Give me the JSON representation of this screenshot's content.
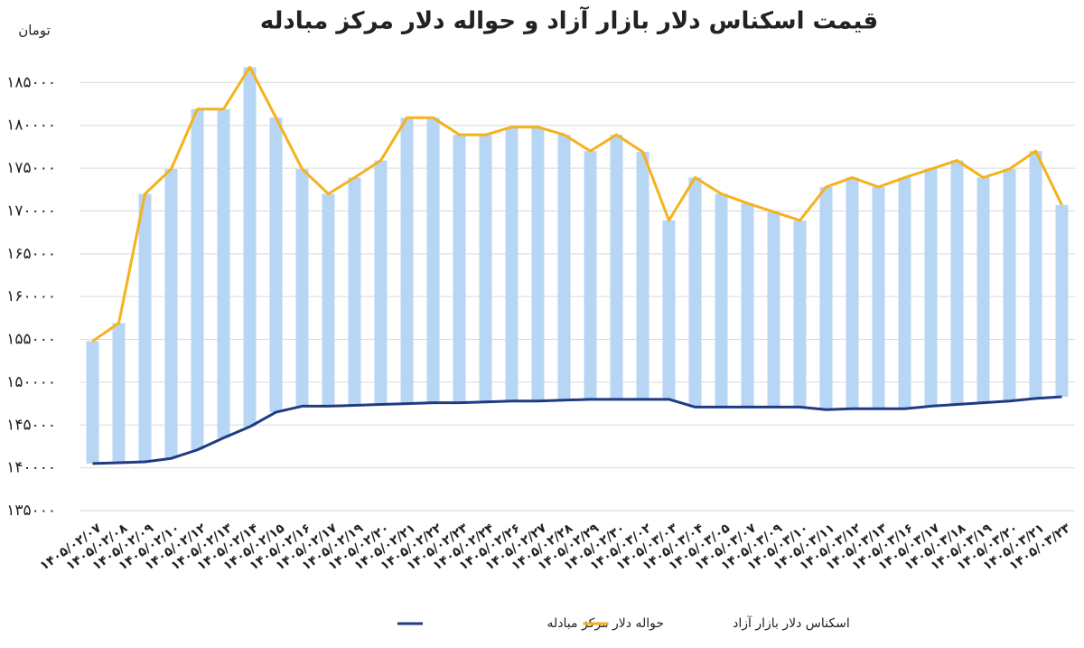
{
  "chart_data": {
    "type": "line",
    "title": "قیمت اسکناس دلار بازار آزاد و حواله دلار مرکز مبادله",
    "y_label": "تومان",
    "categories": [
      "۱۴۰۵/۰۲/۰۷",
      "۱۴۰۵/۰۲/۰۸",
      "۱۴۰۵/۰۲/۰۹",
      "۱۴۰۵/۰۲/۱۰",
      "۱۴۰۵/۰۲/۱۲",
      "۱۴۰۵/۰۲/۱۳",
      "۱۴۰۵/۰۲/۱۴",
      "۱۴۰۵/۰۲/۱۵",
      "۱۴۰۵/۰۲/۱۶",
      "۱۴۰۵/۰۲/۱۷",
      "۱۴۰۵/۰۲/۱۹",
      "۱۴۰۵/۰۲/۲۰",
      "۱۴۰۵/۰۲/۲۱",
      "۱۴۰۵/۰۲/۲۲",
      "۱۴۰۵/۰۲/۲۳",
      "۱۴۰۵/۰۲/۲۴",
      "۱۴۰۵/۰۲/۲۶",
      "۱۴۰۵/۰۲/۲۷",
      "۱۴۰۵/۰۲/۲۸",
      "۱۴۰۵/۰۲/۲۹",
      "۱۴۰۵/۰۲/۳۰",
      "۱۴۰۵/۰۳/۰۲",
      "۱۴۰۵/۰۳/۰۳",
      "۱۴۰۵/۰۳/۰۴",
      "۱۴۰۵/۰۳/۰۵",
      "۱۴۰۵/۰۳/۰۷",
      "۱۴۰۵/۰۳/۰۹",
      "۱۴۰۵/۰۳/۱۰",
      "۱۴۰۵/۰۳/۱۱",
      "۱۴۰۵/۰۳/۱۲",
      "۱۴۰۵/۰۳/۱۳",
      "۱۴۰۵/۰۳/۱۶",
      "۱۴۰۵/۰۳/۱۷",
      "۱۴۰۵/۰۳/۱۸",
      "۱۴۰۵/۰۳/۱۹",
      "۱۴۰۵/۰۳/۲۰",
      "۱۴۰۵/۰۳/۲۱",
      "۱۴۰۵/۰۳/۲۳"
    ],
    "series": [
      {
        "name": "حواله دلار مرکز مبادله",
        "color": "#1f3b82",
        "values": [
          140500,
          140600,
          140700,
          141100,
          142100,
          143500,
          144800,
          146500,
          147200,
          147200,
          147300,
          147400,
          147500,
          147600,
          147600,
          147700,
          147800,
          147800,
          147900,
          148000,
          148000,
          148000,
          148000,
          147100,
          147100,
          147100,
          147100,
          147100,
          146800,
          146900,
          146900,
          146900,
          147200,
          147400,
          147600,
          147800,
          148100,
          148300
        ]
      },
      {
        "name": "اسکناس دلار بازار آزاد",
        "color": "#f5b21b",
        "values": [
          154800,
          156900,
          172000,
          174900,
          181900,
          181900,
          186800,
          180900,
          174900,
          172000,
          173900,
          175900,
          180900,
          180900,
          178900,
          178900,
          179800,
          179800,
          178900,
          177000,
          178900,
          176900,
          168900,
          173900,
          172000,
          170900,
          169900,
          168900,
          172800,
          173900,
          172800,
          173900,
          174900,
          175900,
          173900,
          174900,
          177000,
          170700
        ]
      }
    ],
    "range_bars": {
      "color": "#b7d6f5"
    },
    "ylim": [
      135000,
      190000
    ],
    "yticks": [
      {
        "value": 135000,
        "label": "۱۳۵۰۰۰"
      },
      {
        "value": 140000,
        "label": "۱۴۰۰۰۰"
      },
      {
        "value": 145000,
        "label": "۱۴۵۰۰۰"
      },
      {
        "value": 150000,
        "label": "۱۵۰۰۰۰"
      },
      {
        "value": 155000,
        "label": "۱۵۵۰۰۰"
      },
      {
        "value": 160000,
        "label": "۱۶۰۰۰۰"
      },
      {
        "value": 165000,
        "label": "۱۶۵۰۰۰"
      },
      {
        "value": 170000,
        "label": "۱۷۰۰۰۰"
      },
      {
        "value": 175000,
        "label": "۱۷۵۰۰۰"
      },
      {
        "value": 180000,
        "label": "۱۸۰۰۰۰"
      },
      {
        "value": 185000,
        "label": "۱۸۵۰۰۰"
      }
    ],
    "grid": true,
    "legend": "bottom"
  }
}
